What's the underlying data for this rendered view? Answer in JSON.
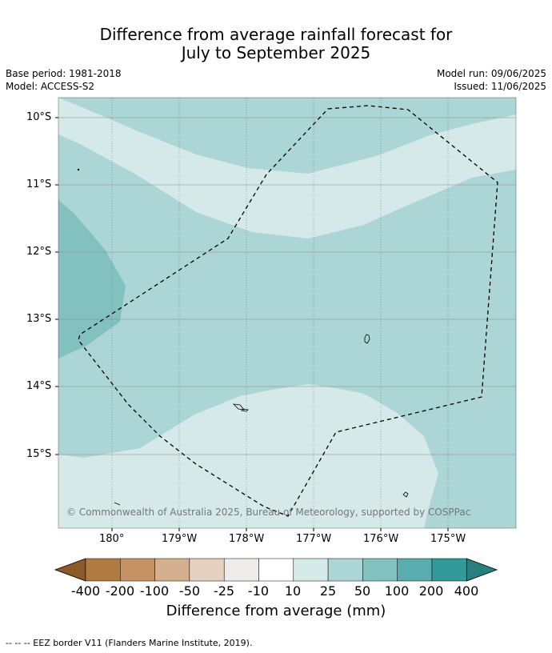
{
  "title": {
    "line1": "Difference from average rainfall forecast for",
    "line2": "July to September 2025"
  },
  "meta": {
    "base_period": "Base period: 1981-2018",
    "model": "Model: ACCESS-S2",
    "model_run": "Model run: 09/06/2025",
    "issued": "Issued: 11/06/2025"
  },
  "map": {
    "lat_labels": [
      "10°S",
      "11°S",
      "12°S",
      "13°S",
      "14°S",
      "15°S"
    ],
    "lon_labels": [
      "180°",
      "179°W",
      "178°W",
      "177°W",
      "176°W",
      "175°W"
    ],
    "copyright": "© Commonwealth of Australia 2025, Bureau of Meteorology, supported by COSPPac",
    "category_colors": {
      "10_to_25": "#d5e9e8",
      "25_to_50": "#acd5d5",
      "50_to_100": "#83c1c1"
    }
  },
  "colorbar": {
    "labels": [
      "-400",
      "-200",
      "-100",
      "-50",
      "-25",
      "-10",
      "10",
      "25",
      "50",
      "100",
      "200",
      "400"
    ],
    "colors": [
      "#8c5a2a",
      "#b07a40",
      "#c59363",
      "#d4b08e",
      "#e5d1bf",
      "#efebe8",
      "#ffffff",
      "#d5e9e8",
      "#acd5d5",
      "#83c1c1",
      "#5aadae",
      "#339a99",
      "#2a7f7e"
    ],
    "title": "Difference from average (mm)"
  },
  "footnote": "-- -- -- EEZ border V11 (Flanders Marine Institute, 2019)."
}
